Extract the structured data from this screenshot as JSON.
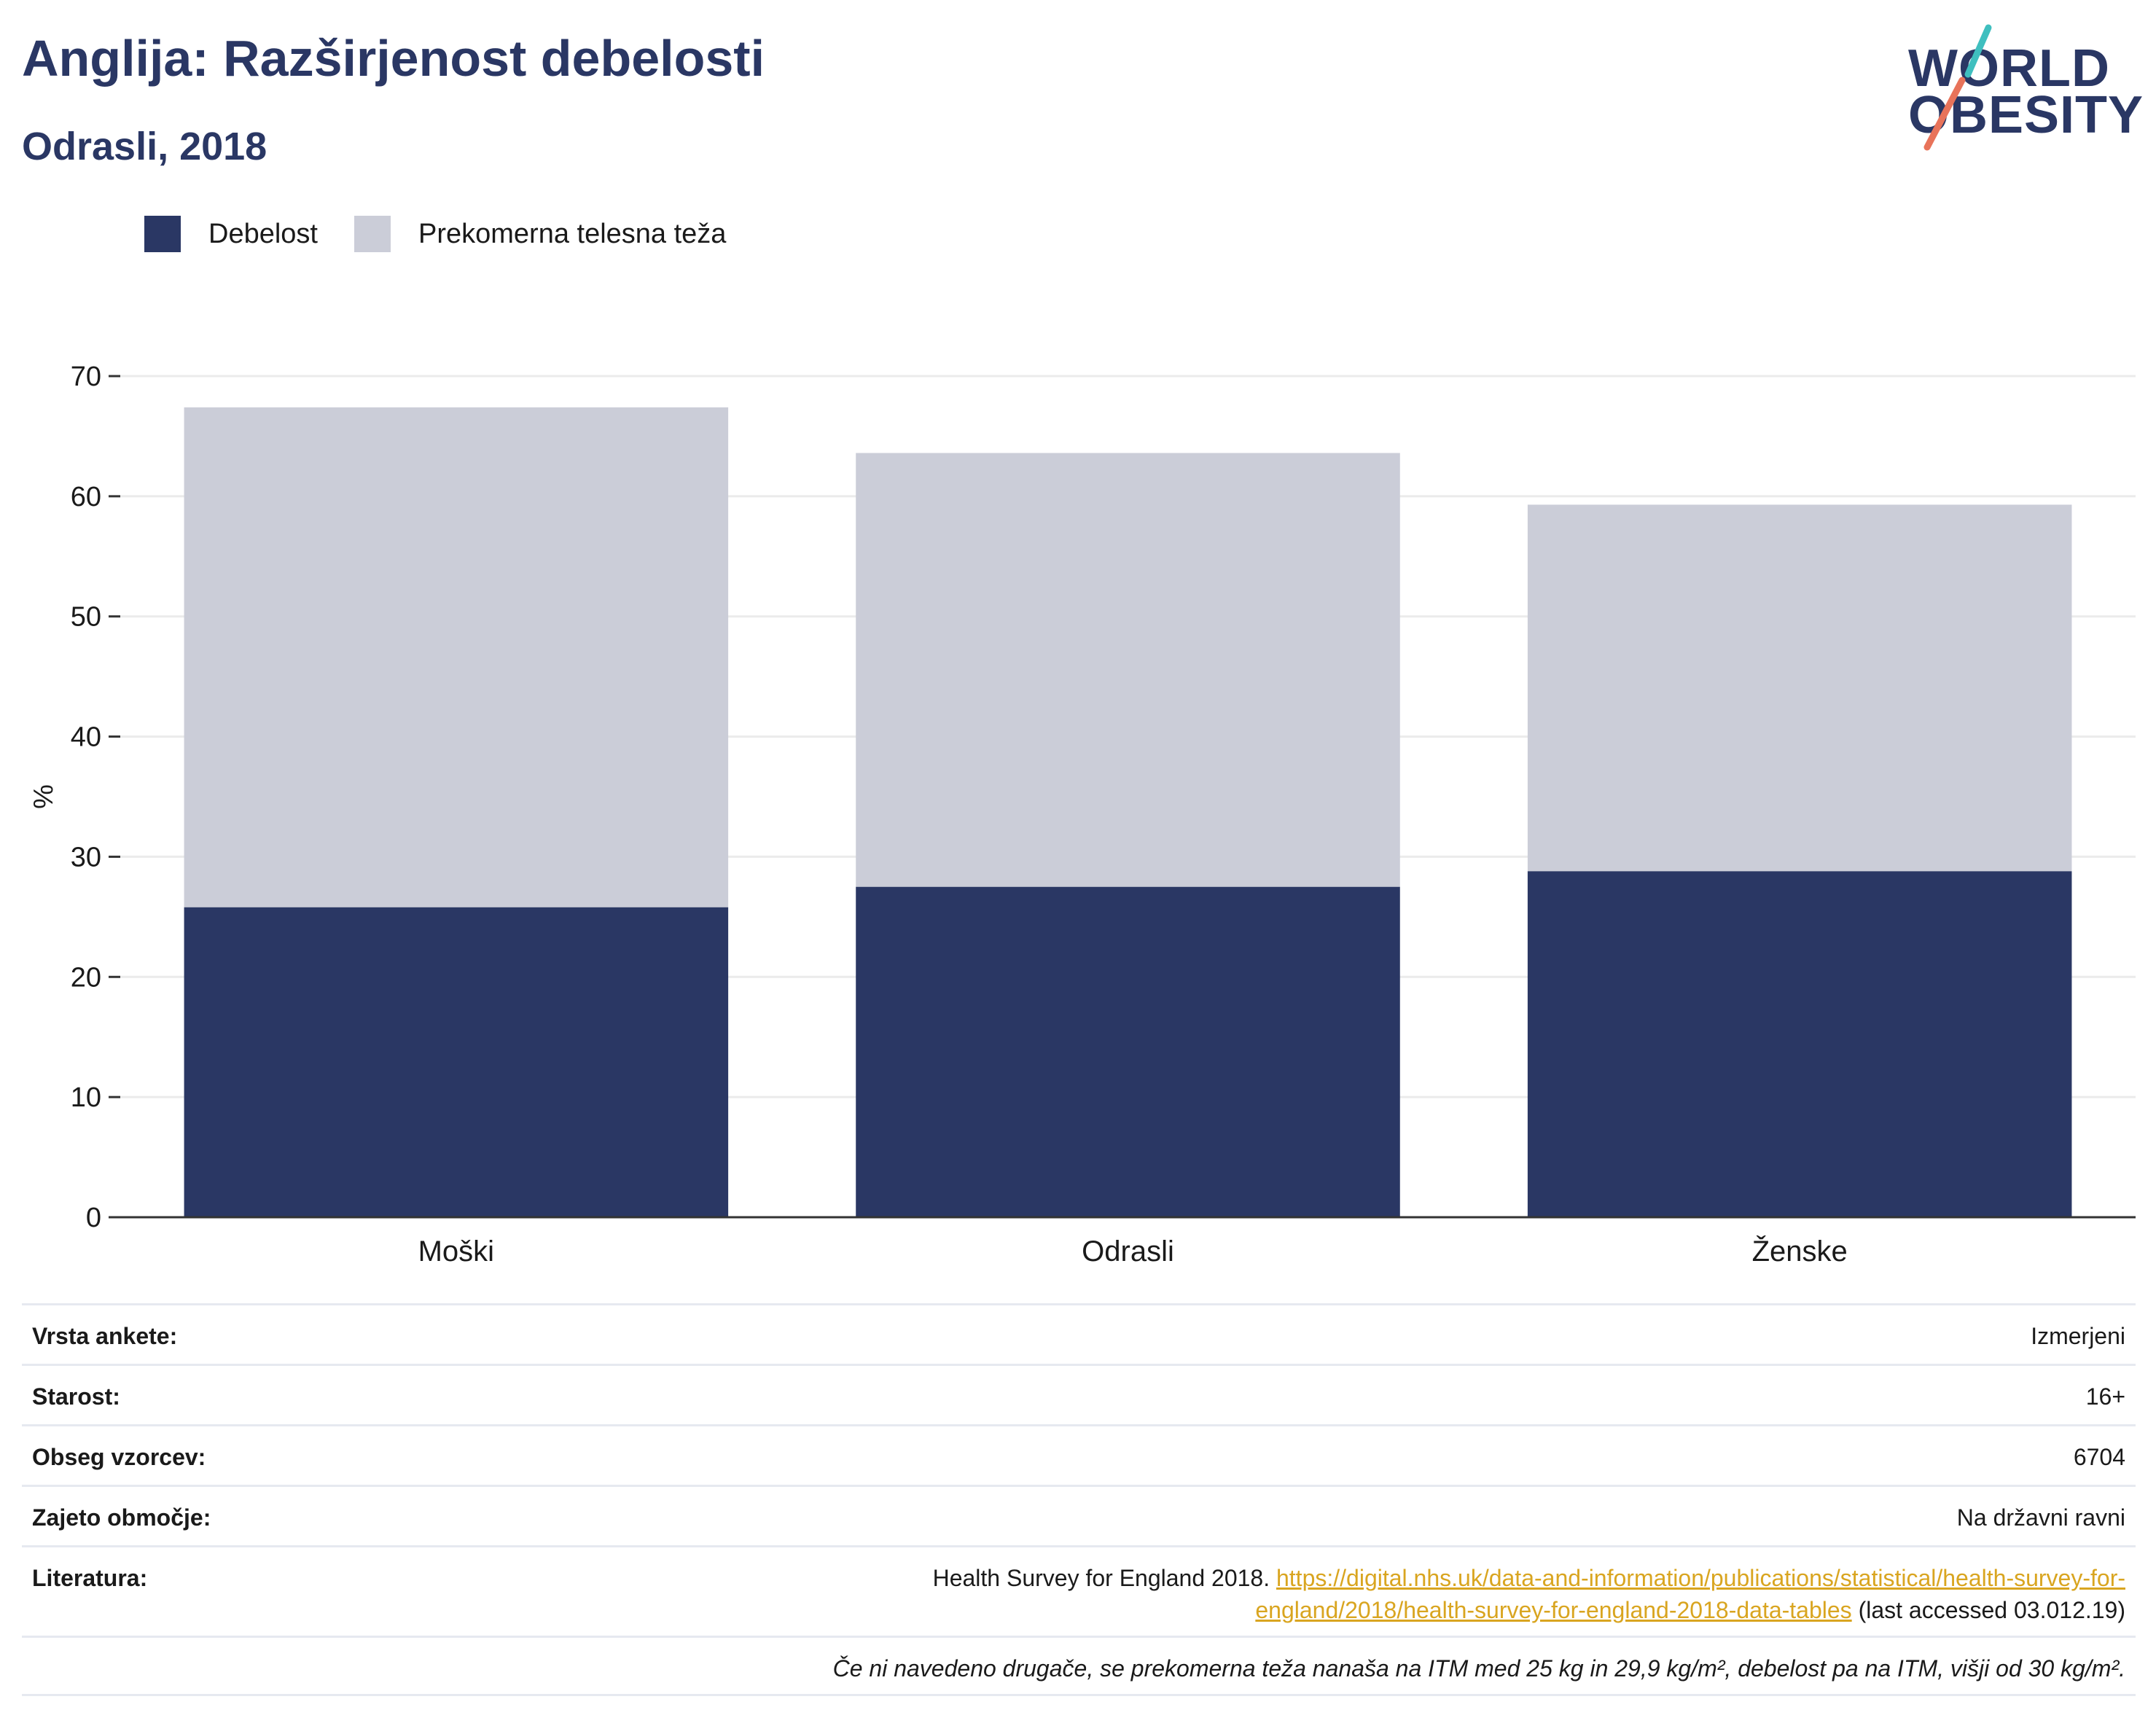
{
  "header": {
    "title": "Anglija: Razširjenost debelosti",
    "subtitle": "Odrasli, 2018"
  },
  "logo": {
    "line1": "WORLD",
    "line2": "OBESITY",
    "teal": "#3fbfbf",
    "coral": "#e8735a"
  },
  "colors": {
    "obesity": "#2a3764",
    "overweight": "#cbcdd8",
    "grid": "#ebebeb",
    "axis": "#333333",
    "link": "#d9a520"
  },
  "legend": [
    {
      "label": "Debelost",
      "color": "#2a3764"
    },
    {
      "label": "Prekomerna telesna teža",
      "color": "#cbcdd8"
    }
  ],
  "chart_data": {
    "type": "bar",
    "stacked": true,
    "categories": [
      "Moški",
      "Odrasli",
      "Ženske"
    ],
    "series": [
      {
        "name": "Debelost",
        "values": [
          25.8,
          27.5,
          28.8
        ]
      },
      {
        "name": "Prekomerna telesna teža",
        "values": [
          41.6,
          36.1,
          30.5
        ]
      }
    ],
    "ylabel": "%",
    "ylim": [
      0,
      70
    ],
    "yticks": [
      0,
      10,
      20,
      30,
      40,
      50,
      60,
      70
    ],
    "grid": true,
    "legend_position": "top-left"
  },
  "info": {
    "survey_type": {
      "label": "Vrsta ankete:",
      "value": "Izmerjeni"
    },
    "age": {
      "label": "Starost:",
      "value": "16+"
    },
    "sample": {
      "label": "Obseg vzorcev:",
      "value": "6704"
    },
    "coverage": {
      "label": "Zajeto območje:",
      "value": "Na državni ravni"
    },
    "literature": {
      "label": "Literatura:",
      "text_before": "Health Survey for England 2018. ",
      "link_line1": "https://digital.nhs.uk/data-and-information/publications/statistical/health-survey-for-",
      "link_line2": "england/2018/health-survey-for-england-2018-data-tables",
      "text_after": " (last accessed 03.012.19)"
    },
    "note": "Če ni navedeno drugače, se prekomerna teža nanaša na ITM med 25 kg in 29,9 kg/m², debelost pa na ITM, višji od 30 kg/m²."
  }
}
